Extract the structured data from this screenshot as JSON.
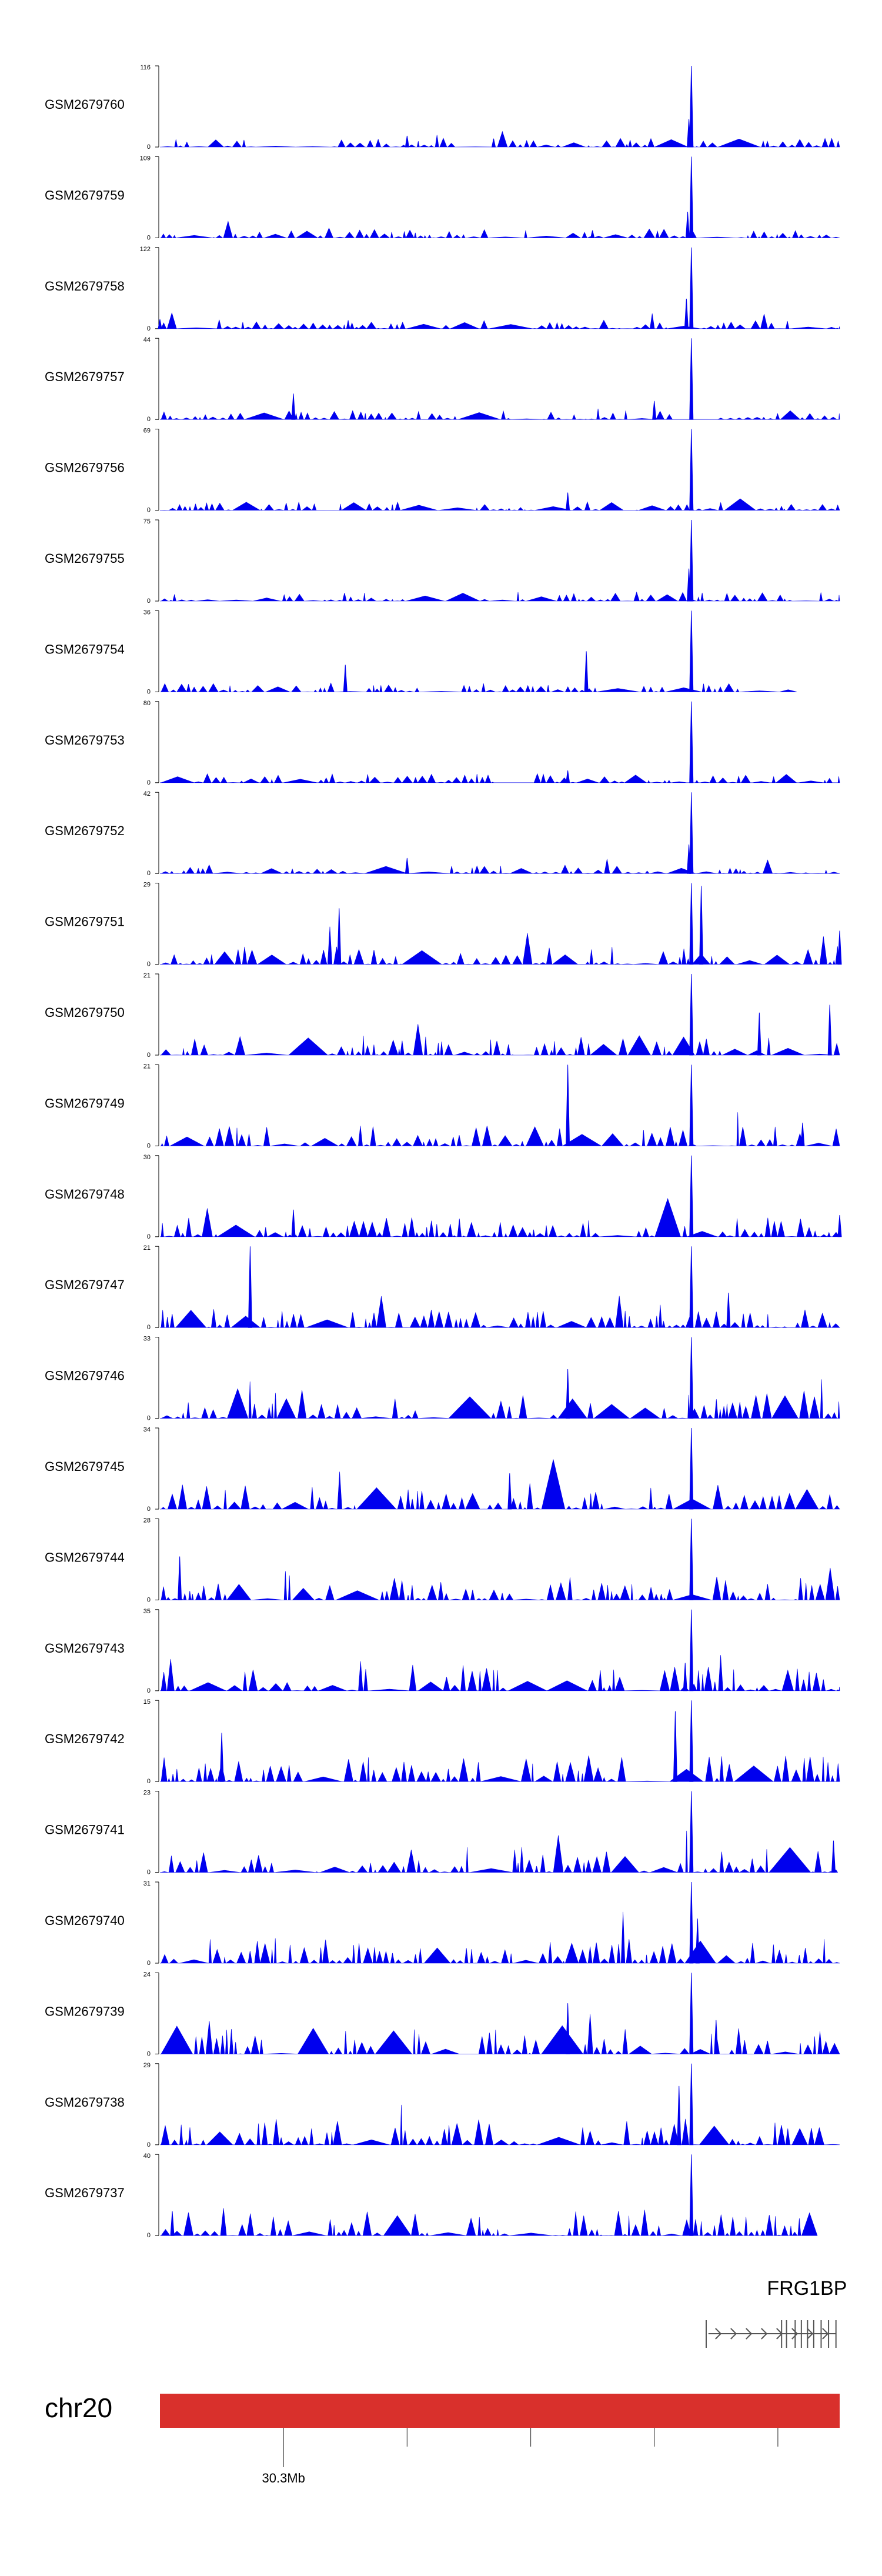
{
  "chart_data": {
    "type": "area",
    "region_start_mb": 30.2,
    "region_end_mb": 30.75,
    "series": [
      {
        "name": "GSM2679760",
        "ymax": "116",
        "ymin": "0",
        "peaks": [
          [
            30.4,
            16
          ],
          [
            30.63,
            116
          ],
          [
            30.628,
            40
          ],
          [
            30.47,
            12
          ]
        ]
      },
      {
        "name": "GSM2679759",
        "ymax": "109",
        "ymin": "0",
        "peaks": [
          [
            30.63,
            109
          ],
          [
            30.627,
            35
          ],
          [
            30.55,
            10
          ]
        ]
      },
      {
        "name": "GSM2679758",
        "ymax": "122",
        "ymin": "0",
        "peaks": [
          [
            30.63,
            122
          ],
          [
            30.626,
            45
          ],
          [
            30.2,
            14
          ]
        ]
      },
      {
        "name": "GSM2679757",
        "ymax": "44",
        "ymin": "0",
        "peaks": [
          [
            30.63,
            44
          ],
          [
            30.308,
            14
          ],
          [
            30.6,
            10
          ]
        ]
      },
      {
        "name": "GSM2679756",
        "ymax": "69",
        "ymin": "0",
        "peaks": [
          [
            30.63,
            69
          ],
          [
            30.53,
            15
          ]
        ]
      },
      {
        "name": "GSM2679755",
        "ymax": "75",
        "ymin": "0",
        "peaks": [
          [
            30.63,
            75
          ],
          [
            30.628,
            30
          ]
        ]
      },
      {
        "name": "GSM2679754",
        "ymax": "36",
        "ymin": "0",
        "peaks": [
          [
            30.63,
            36
          ],
          [
            30.545,
            18
          ],
          [
            30.35,
            12
          ]
        ]
      },
      {
        "name": "GSM2679753",
        "ymax": "80",
        "ymin": "0",
        "peaks": [
          [
            30.63,
            80
          ],
          [
            30.53,
            12
          ]
        ]
      },
      {
        "name": "GSM2679752",
        "ymax": "42",
        "ymin": "0",
        "peaks": [
          [
            30.63,
            42
          ],
          [
            30.628,
            15
          ],
          [
            30.4,
            8
          ]
        ]
      },
      {
        "name": "GSM2679751",
        "ymax": "29",
        "ymin": "0",
        "peaks": [
          [
            30.63,
            29
          ],
          [
            30.638,
            28
          ],
          [
            30.345,
            20
          ],
          [
            30.75,
            12
          ]
        ]
      },
      {
        "name": "GSM2679750",
        "ymax": "21",
        "ymin": "0",
        "peaks": [
          [
            30.63,
            21
          ],
          [
            30.685,
            11
          ],
          [
            30.742,
            13
          ]
        ]
      },
      {
        "name": "GSM2679749",
        "ymax": "21",
        "ymin": "0",
        "peaks": [
          [
            30.53,
            21
          ],
          [
            30.63,
            21
          ],
          [
            30.72,
            6
          ]
        ]
      },
      {
        "name": "GSM2679748",
        "ymax": "30",
        "ymin": "0",
        "peaks": [
          [
            30.63,
            30
          ],
          [
            30.308,
            10
          ],
          [
            30.75,
            8
          ]
        ]
      },
      {
        "name": "GSM2679747",
        "ymax": "21",
        "ymin": "0",
        "peaks": [
          [
            30.273,
            21
          ],
          [
            30.63,
            21
          ],
          [
            30.66,
            9
          ]
        ]
      },
      {
        "name": "GSM2679746",
        "ymax": "33",
        "ymin": "0",
        "peaks": [
          [
            30.63,
            33
          ],
          [
            30.53,
            20
          ]
        ]
      },
      {
        "name": "GSM2679745",
        "ymax": "34",
        "ymin": "0",
        "peaks": [
          [
            30.63,
            34
          ],
          [
            30.483,
            15
          ]
        ]
      },
      {
        "name": "GSM2679744",
        "ymax": "28",
        "ymin": "0",
        "peaks": [
          [
            30.63,
            28
          ],
          [
            30.216,
            15
          ]
        ]
      },
      {
        "name": "GSM2679743",
        "ymax": "35",
        "ymin": "0",
        "peaks": [
          [
            30.63,
            35
          ],
          [
            30.625,
            12
          ]
        ]
      },
      {
        "name": "GSM2679742",
        "ymax": "15",
        "ymin": "0",
        "peaks": [
          [
            30.63,
            15
          ],
          [
            30.617,
            13
          ],
          [
            30.25,
            9
          ]
        ]
      },
      {
        "name": "GSM2679741",
        "ymax": "23",
        "ymin": "0",
        "peaks": [
          [
            30.63,
            23
          ],
          [
            30.745,
            9
          ]
        ]
      },
      {
        "name": "GSM2679740",
        "ymax": "31",
        "ymin": "0",
        "peaks": [
          [
            30.63,
            31
          ],
          [
            30.635,
            17
          ]
        ]
      },
      {
        "name": "GSM2679739",
        "ymax": "24",
        "ymin": "0",
        "peaks": [
          [
            30.53,
            15
          ],
          [
            30.63,
            24
          ],
          [
            30.65,
            10
          ]
        ]
      },
      {
        "name": "GSM2679738",
        "ymax": "29",
        "ymin": "0",
        "peaks": [
          [
            30.63,
            29
          ],
          [
            30.62,
            21
          ]
        ]
      },
      {
        "name": "GSM2679737",
        "ymax": "40",
        "ymin": "0",
        "peaks": [
          [
            30.63,
            40
          ],
          [
            30.21,
            12
          ]
        ]
      }
    ],
    "gene": {
      "name": "FRG1BP",
      "start_mb": 30.64,
      "end_mb": 30.75
    },
    "chromosome": {
      "name": "chr20",
      "color": "#d9302c"
    },
    "ticks": [
      {
        "value": 30.3,
        "label": "30.3Mb"
      },
      {
        "value": 30.4,
        "label": ""
      },
      {
        "value": 30.5,
        "label": ""
      },
      {
        "value": 30.6,
        "label": ""
      },
      {
        "value": 30.7,
        "label": ""
      }
    ],
    "fill_color": "#0000ee"
  }
}
